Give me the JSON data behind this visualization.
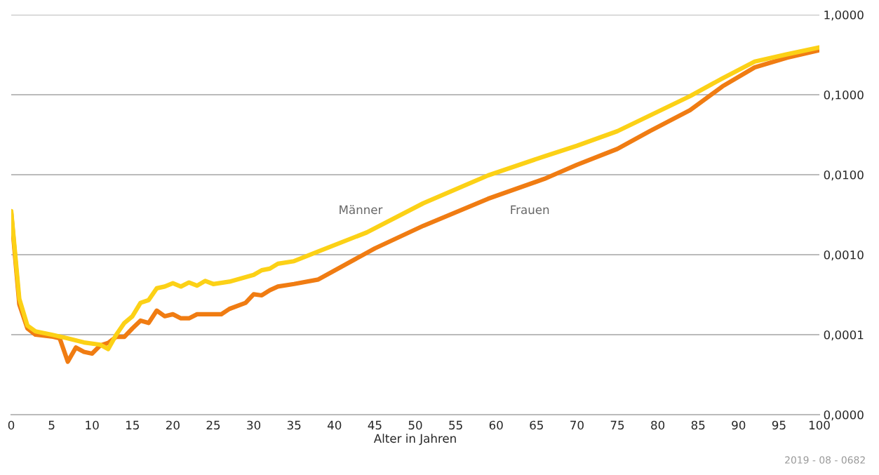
{
  "chart_data": {
    "type": "line",
    "xlabel": "Alter in Jahren",
    "log": "y",
    "grid": "y",
    "legend": false,
    "xlim": [
      0,
      100
    ],
    "xticks": [
      0,
      5,
      10,
      15,
      20,
      25,
      30,
      35,
      40,
      45,
      50,
      55,
      60,
      65,
      70,
      75,
      80,
      85,
      90,
      95,
      100
    ],
    "ylim": [
      1e-05,
      1
    ],
    "yticks": [
      {
        "value": 1e-05,
        "label": "0,0000"
      },
      {
        "value": 0.0001,
        "label": "0,0001"
      },
      {
        "value": 0.001,
        "label": "0,0010"
      },
      {
        "value": 0.01,
        "label": "0,0100"
      },
      {
        "value": 0.1,
        "label": "0,1000"
      },
      {
        "value": 1,
        "label": "1,0000"
      }
    ],
    "annotations": [
      "2019 - 08 - 0682"
    ],
    "series": [
      {
        "name": "Frauen",
        "color": "#f07c12",
        "x": [
          0,
          1,
          2,
          3,
          5,
          6,
          7,
          8,
          9,
          10,
          11,
          12,
          13,
          14,
          15,
          16,
          17,
          18,
          19,
          20,
          21,
          22,
          23,
          25,
          26,
          27,
          29,
          30,
          31,
          32,
          33,
          35,
          38,
          45,
          51,
          59,
          66,
          70,
          75,
          79,
          84,
          88,
          92,
          96,
          100
        ],
        "values": [
          0.0033,
          0.00024,
          0.00012,
          0.0001,
          9.5e-05,
          9e-05,
          4.6e-05,
          6.9e-05,
          6.1e-05,
          5.8e-05,
          7.3e-05,
          7.9e-05,
          9.4e-05,
          9.4e-05,
          0.00012,
          0.00015,
          0.00014,
          0.0002,
          0.00017,
          0.00018,
          0.00016,
          0.00016,
          0.00018,
          0.00018,
          0.00018,
          0.00021,
          0.00025,
          0.00032,
          0.00031,
          0.00036,
          0.0004,
          0.00043,
          0.00049,
          0.0012,
          0.0023,
          0.005,
          0.0089,
          0.0133,
          0.021,
          0.035,
          0.064,
          0.127,
          0.22,
          0.29,
          0.36
        ]
      },
      {
        "name": "Männer",
        "color": "#fcd116",
        "x": [
          0,
          1,
          2,
          3,
          5,
          7,
          9,
          11,
          12,
          13,
          14,
          15,
          16,
          17,
          18,
          19,
          20,
          21,
          22,
          23,
          24,
          25,
          27,
          28,
          30,
          31,
          32,
          33,
          35,
          38,
          44,
          51,
          59,
          66,
          70,
          75,
          84,
          88,
          92,
          96,
          100
        ],
        "values": [
          0.0035,
          0.00028,
          0.00013,
          0.00011,
          0.0001,
          9e-05,
          8e-05,
          7.5e-05,
          6.6e-05,
          0.0001,
          0.00014,
          0.00017,
          0.00025,
          0.00027,
          0.00038,
          0.0004,
          0.00044,
          0.0004,
          0.00045,
          0.00041,
          0.00047,
          0.00043,
          0.00046,
          0.00049,
          0.00056,
          0.00064,
          0.00067,
          0.00077,
          0.00083,
          0.0011,
          0.0019,
          0.0044,
          0.0098,
          0.017,
          0.023,
          0.035,
          0.096,
          0.16,
          0.26,
          0.32,
          0.39
        ]
      }
    ]
  }
}
